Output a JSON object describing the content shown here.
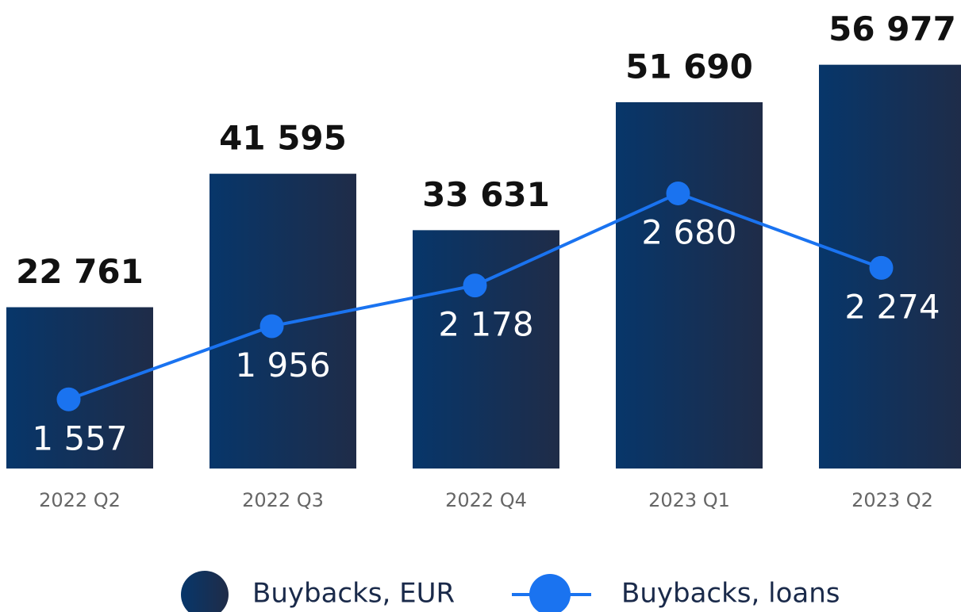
{
  "chart_data": {
    "type": "bar_line",
    "categories": [
      "2022 Q2",
      "2022 Q3",
      "2022 Q4",
      "2023 Q1",
      "2023 Q2"
    ],
    "series": [
      {
        "name": "Buybacks, EUR",
        "type": "bar",
        "color": "#0a3566",
        "values": [
          22761,
          41595,
          33631,
          51690,
          56977
        ],
        "value_labels": [
          "22 761",
          "41 595",
          "33 631",
          "51 690",
          "56 977"
        ]
      },
      {
        "name": "Buybacks, loans",
        "type": "line",
        "axis": "y2",
        "color": "#1a73f0",
        "values": [
          1557,
          1956,
          2178,
          2680,
          2274
        ],
        "value_labels": [
          "1 557",
          "1 956",
          "2 178",
          "2 680",
          "2 274"
        ]
      }
    ],
    "ylim": [
      0,
      66000
    ],
    "y2lim": [
      1180,
      3730
    ],
    "legend": "bottom"
  }
}
